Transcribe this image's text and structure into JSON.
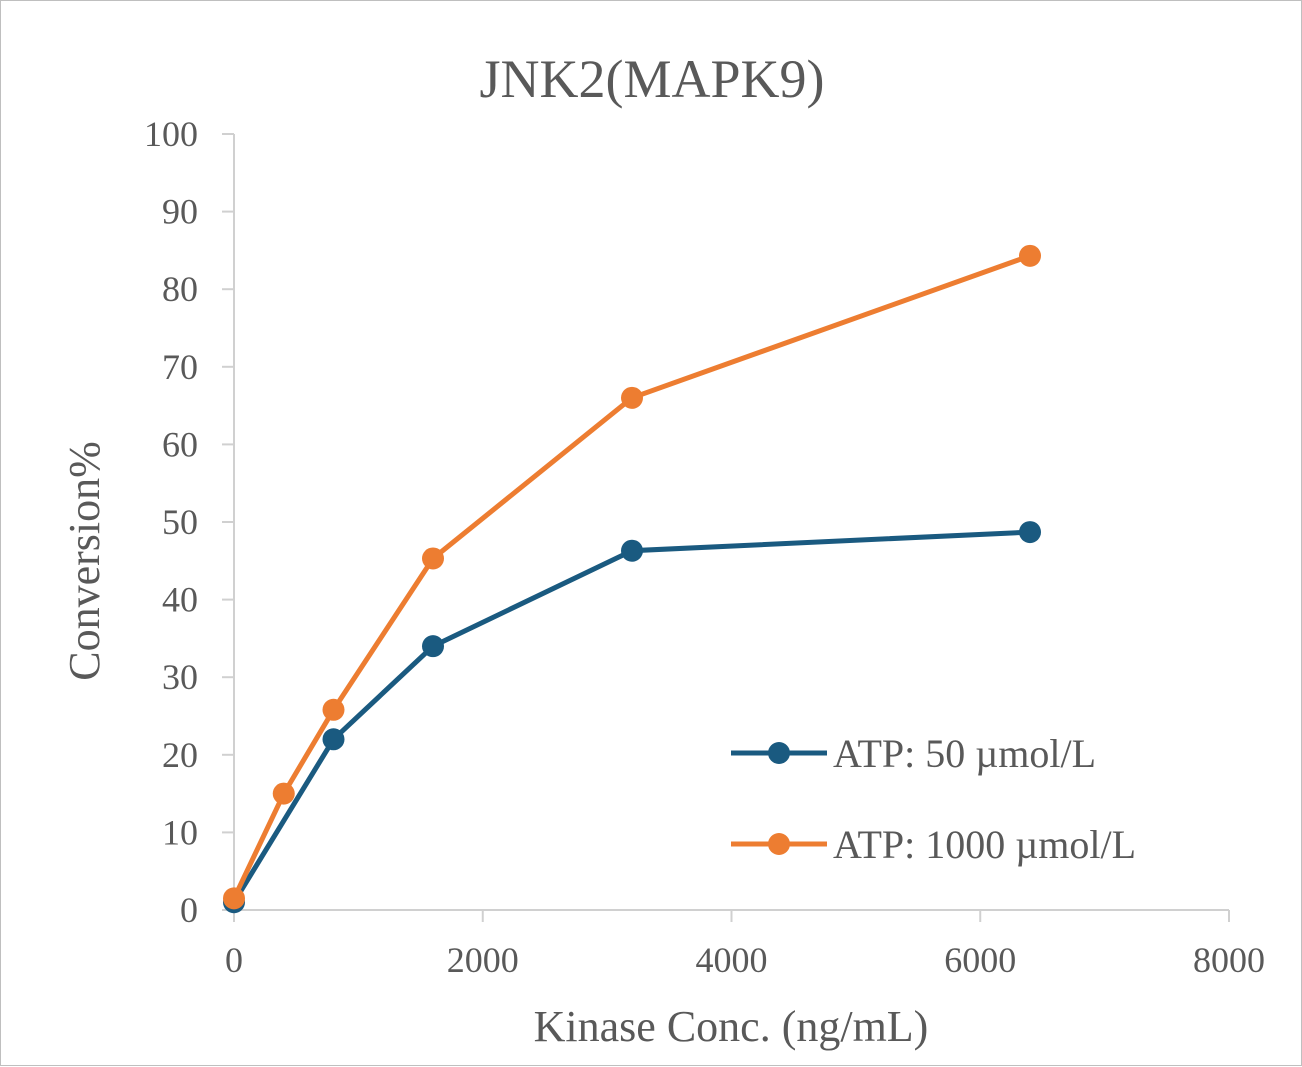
{
  "chart_data": {
    "type": "line",
    "title": "JNK2(MAPK9)",
    "xlabel": "Kinase Conc. (ng/mL)",
    "ylabel": "Conversion%",
    "xlim": [
      0,
      8000
    ],
    "ylim": [
      0,
      100
    ],
    "x_ticks": [
      0,
      2000,
      4000,
      6000,
      8000
    ],
    "y_ticks": [
      0,
      10,
      20,
      30,
      40,
      50,
      60,
      70,
      80,
      90,
      100
    ],
    "grid": false,
    "legend_position": "bottom-right",
    "series": [
      {
        "name": "ATP: 50 µmol/L",
        "color": "#1a5a80",
        "x": [
          0,
          800,
          1600,
          3200,
          6400
        ],
        "values": [
          1,
          22,
          34,
          46.3,
          48.7
        ]
      },
      {
        "name": "ATP: 1000 µmol/L",
        "color": "#ed7d31",
        "x": [
          0,
          400,
          800,
          1600,
          3200,
          6400
        ],
        "values": [
          1.5,
          15,
          25.8,
          45.3,
          66,
          84.3
        ]
      }
    ]
  }
}
